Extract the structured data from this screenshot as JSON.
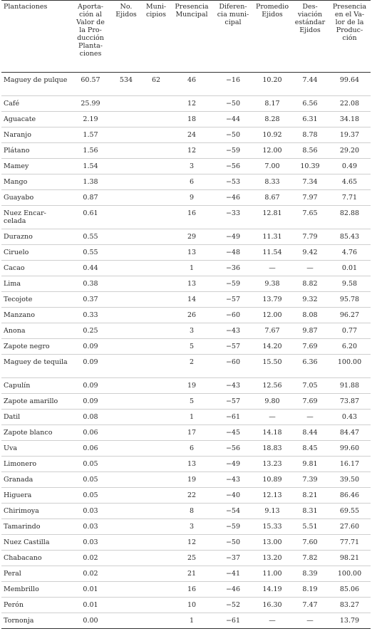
{
  "headers": [
    "Plantaciones",
    "Aporta-ción al Valor de la Pro-ducción Planta-ciones",
    "No. Ejidos",
    "Muni-cipios",
    "Presencia Muncipal",
    "Diferen-cia muni-cipal",
    "Promedio Ejidos",
    "Des-viación estándar Ejidos",
    "Presencia en el Va-lor de la Produc-ción"
  ],
  "rows": [
    [
      "Maguey de pulque",
      "60.57",
      "534",
      "62",
      "46",
      "−16",
      "10.20",
      "7.44",
      "99.64"
    ],
    [
      "Café",
      "25.99",
      "",
      "",
      "12",
      "−50",
      "8.17",
      "6.56",
      "22.08"
    ],
    [
      "Aguacate",
      "2.19",
      "",
      "",
      "18",
      "−44",
      "8.28",
      "6.31",
      "34.18"
    ],
    [
      "Naranjo",
      "1.57",
      "",
      "",
      "24",
      "−50",
      "10.92",
      "8.78",
      "19.37"
    ],
    [
      "Plátano",
      "1.56",
      "",
      "",
      "12",
      "−59",
      "12.00",
      "8.56",
      "29.20"
    ],
    [
      "Mamey",
      "1.54",
      "",
      "",
      "3",
      "−56",
      "7.00",
      "10.39",
      "0.49"
    ],
    [
      "Mango",
      "1.38",
      "",
      "",
      "6",
      "−53",
      "8.33",
      "7.34",
      "4.65"
    ],
    [
      "Guayabo",
      "0.87",
      "",
      "",
      "9",
      "−46",
      "8.67",
      "7.97",
      "7.71"
    ],
    [
      "Nuez Encar-celada",
      "0.61",
      "",
      "",
      "16",
      "−33",
      "12.81",
      "7.65",
      "82.88"
    ],
    [
      "Durazno",
      "0.55",
      "",
      "",
      "29",
      "−49",
      "11.31",
      "7.79",
      "85.43"
    ],
    [
      "Ciruelo",
      "0.55",
      "",
      "",
      "13",
      "−48",
      "11.54",
      "9.42",
      "4.76"
    ],
    [
      "Cacao",
      "0.44",
      "",
      "",
      "1",
      "−36",
      "—",
      "—",
      "0.01"
    ],
    [
      "Lima",
      "0.38",
      "",
      "",
      "13",
      "−59",
      "9.38",
      "8.82",
      "9.58"
    ],
    [
      "Tecojote",
      "0.37",
      "",
      "",
      "14",
      "−57",
      "13.79",
      "9.32",
      "95.78"
    ],
    [
      "Manzano",
      "0.33",
      "",
      "",
      "26",
      "−60",
      "12.00",
      "8.08",
      "96.27"
    ],
    [
      "Anona",
      "0.25",
      "",
      "",
      "3",
      "−43",
      "7.67",
      "9.87",
      "0.77"
    ],
    [
      "Zapote negro",
      "0.09",
      "",
      "",
      "5",
      "−57",
      "14.20",
      "7.69",
      "6.20"
    ],
    [
      "Maguey de tequila",
      "0.09",
      "",
      "",
      "2",
      "−60",
      "15.50",
      "6.36",
      "100.00"
    ],
    [
      "Capulín",
      "0.09",
      "",
      "",
      "19",
      "−43",
      "12.56",
      "7.05",
      "91.88"
    ],
    [
      "Zapote amarillo",
      "0.09",
      "",
      "",
      "5",
      "−57",
      "9.80",
      "7.69",
      "73.87"
    ],
    [
      "Datil",
      "0.08",
      "",
      "",
      "1",
      "−61",
      "—",
      "—",
      "0.43"
    ],
    [
      "Zapote blanco",
      "0.06",
      "",
      "",
      "17",
      "−45",
      "14.18",
      "8.44",
      "84.47"
    ],
    [
      "Uva",
      "0.06",
      "",
      "",
      "6",
      "−56",
      "18.83",
      "8.45",
      "99.60"
    ],
    [
      "Limonero",
      "0.05",
      "",
      "",
      "13",
      "−49",
      "13.23",
      "9.81",
      "16.17"
    ],
    [
      "Granada",
      "0.05",
      "",
      "",
      "19",
      "−43",
      "10.89",
      "7.39",
      "39.50"
    ],
    [
      "Higuera",
      "0.05",
      "",
      "",
      "22",
      "−40",
      "12.13",
      "8.21",
      "86.46"
    ],
    [
      "Chirimoya",
      "0.03",
      "",
      "",
      "8",
      "−54",
      "9.13",
      "8.31",
      "69.55"
    ],
    [
      "Tamarindo",
      "0.03",
      "",
      "",
      "3",
      "−59",
      "15.33",
      "5.51",
      "27.60"
    ],
    [
      "Nuez Castilla",
      "0.03",
      "",
      "",
      "12",
      "−50",
      "13.00",
      "7.60",
      "77.71"
    ],
    [
      "Chabacano",
      "0.02",
      "",
      "",
      "25",
      "−37",
      "13.20",
      "7.82",
      "98.21"
    ],
    [
      "Peral",
      "0.02",
      "",
      "",
      "21",
      "−41",
      "11.00",
      "8.39",
      "100.00"
    ],
    [
      "Membrillo",
      "0.01",
      "",
      "",
      "16",
      "−46",
      "14.19",
      "8.19",
      "85.06"
    ],
    [
      "Perón",
      "0.01",
      "",
      "",
      "10",
      "−52",
      "16.30",
      "7.47",
      "83.27"
    ],
    [
      "Tornonja",
      "0.00",
      "",
      "",
      "1",
      "−61",
      "—",
      "—",
      "13.79"
    ]
  ]
}
